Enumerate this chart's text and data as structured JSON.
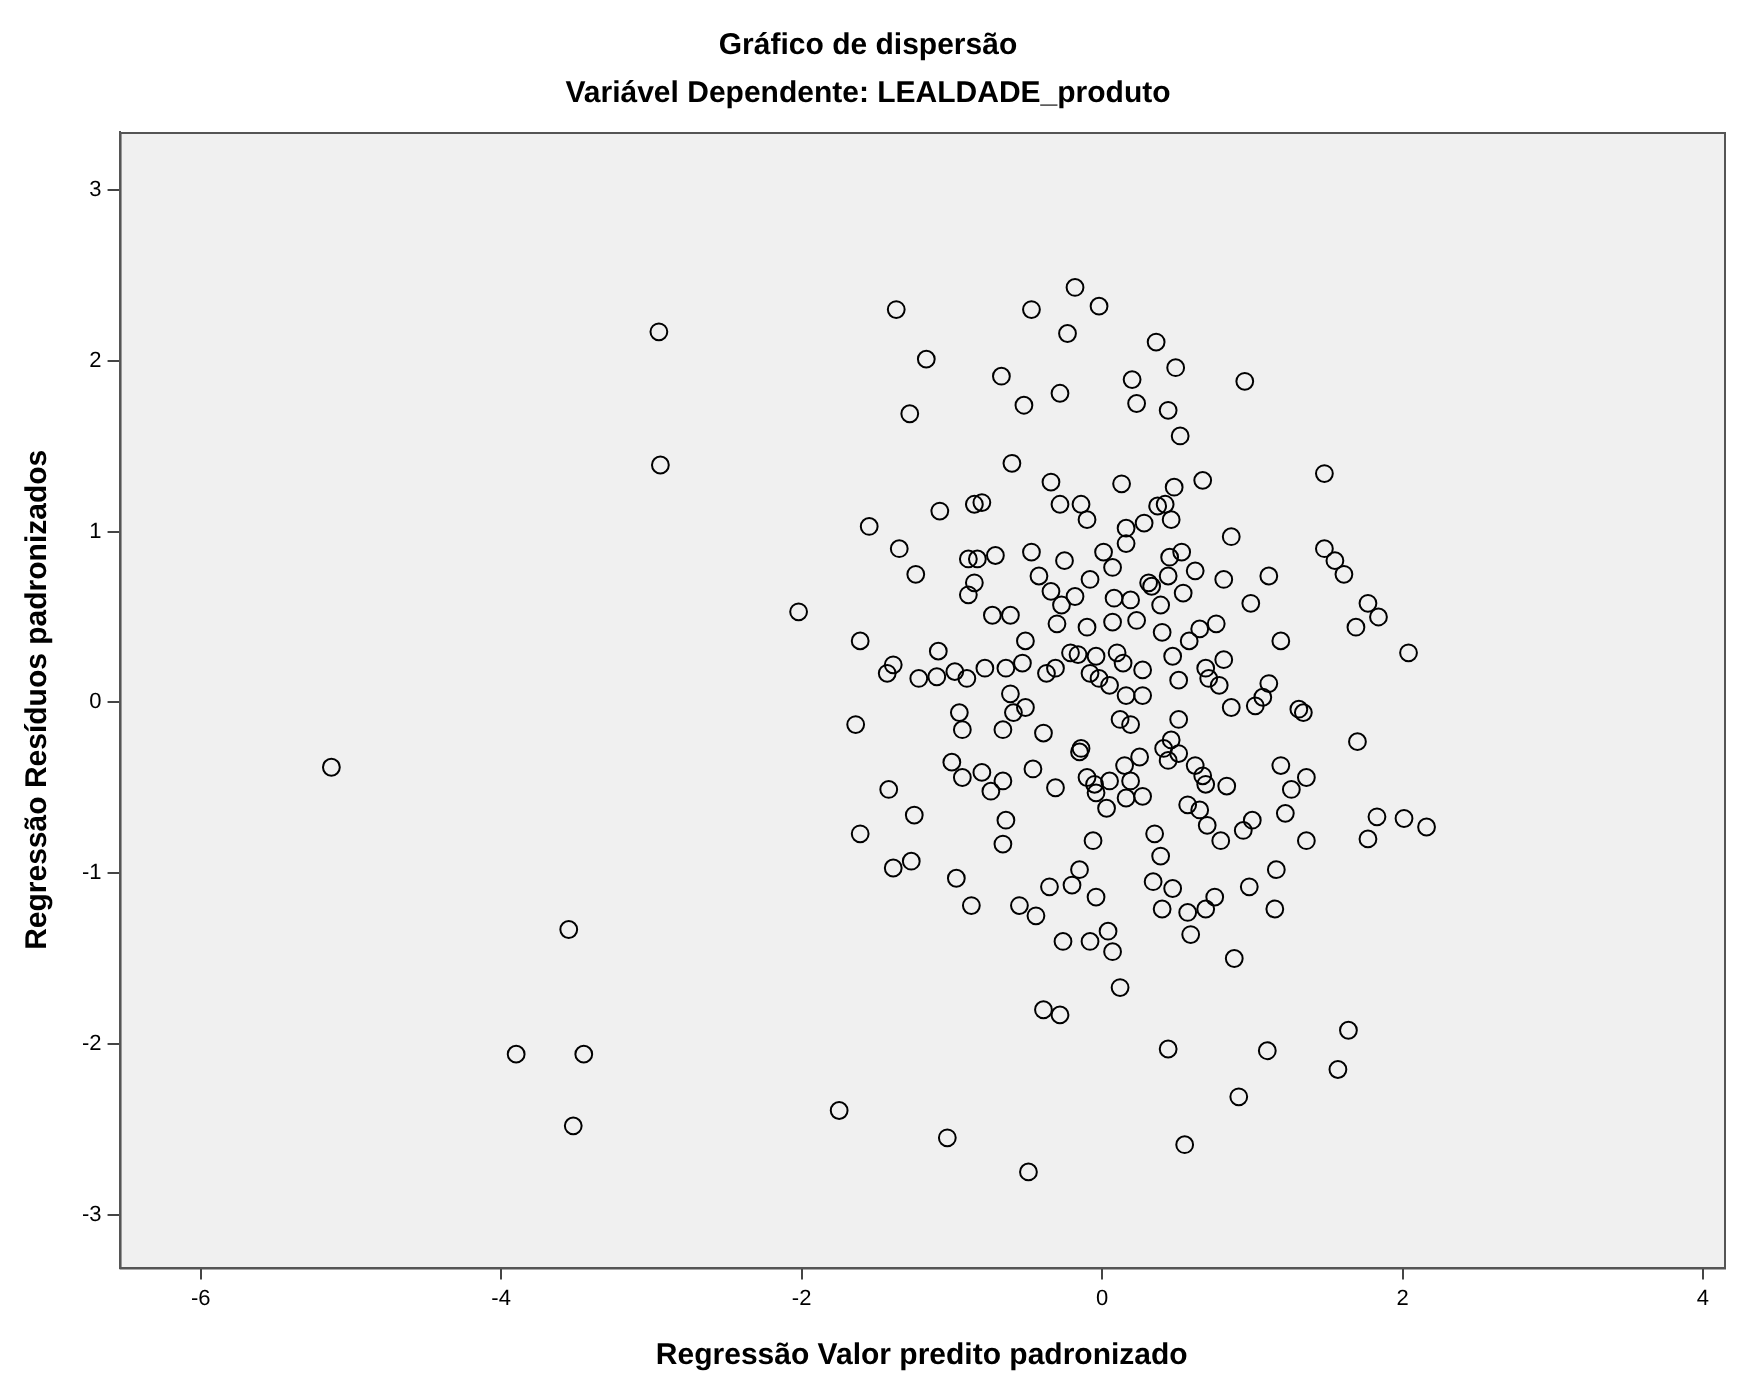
{
  "chart_data": {
    "type": "scatter",
    "title": "Gráfico de dispersão",
    "subtitle": "Variável Dependente: LEALDADE_produto",
    "xlabel": "Regressão Valor predito padronizado",
    "ylabel": "Regressão Resíduos padronizados",
    "xlim": [
      -6.54,
      4.14
    ],
    "ylim": [
      -3.31,
      3.34
    ],
    "xticks": [
      -6,
      -4,
      -2,
      0,
      2,
      4
    ],
    "yticks": [
      -3,
      -2,
      -1,
      0,
      1,
      2,
      3
    ],
    "grid": false,
    "legend": false,
    "marker": "circle",
    "color": "#000000",
    "x": [
      -5.13,
      -2.95,
      -2.94,
      -3.55,
      -3.9,
      -3.45,
      -3.52,
      -1.75,
      -1.03,
      -0.49,
      0.55,
      0.91,
      0.44,
      1.1,
      1.57,
      1.64,
      -0.39,
      -0.28,
      0.12,
      0.88,
      -0.26,
      -0.08,
      0.07,
      0.04,
      0.59,
      0.57,
      0.4,
      0.69,
      0.75,
      0.98,
      1.15,
      1.16,
      0.47,
      0.34,
      -0.04,
      -0.2,
      -0.15,
      -0.44,
      -0.55,
      -0.35,
      -0.87,
      -0.97,
      -1.27,
      -1.39,
      -1.61,
      -1.25,
      -1.42,
      -0.66,
      -0.64,
      -0.06,
      0.35,
      0.39,
      0.79,
      0.7,
      0.65,
      0.57,
      0.94,
      1.0,
      1.22,
      1.36,
      1.77,
      1.83,
      2.01,
      2.16,
      1.7,
      1.36,
      1.26,
      1.19,
      0.83,
      0.69,
      0.67,
      0.62,
      0.51,
      0.44,
      0.41,
      0.46,
      0.51,
      0.27,
      0.16,
      0.19,
      0.15,
      0.25,
      0.03,
      -0.04,
      -0.05,
      -0.1,
      0.05,
      -0.15,
      -0.31,
      -0.46,
      -0.66,
      -0.74,
      -0.8,
      -0.93,
      -1.0,
      -0.66,
      -0.93,
      -0.95,
      -1.64,
      -0.59,
      -0.51,
      -0.61,
      -0.39,
      -1.61,
      -1.39,
      -1.43,
      -1.22,
      -1.1,
      -0.98,
      -0.9,
      -0.78,
      -0.64,
      -0.53,
      -0.37,
      -0.31,
      -1.09,
      -0.51,
      -0.73,
      -0.61,
      -0.3,
      -0.27,
      -0.16,
      -0.21,
      -0.1,
      -0.04,
      -0.08,
      -0.02,
      0.05,
      0.1,
      0.14,
      0.07,
      0.16,
      0.19,
      0.12,
      0.27,
      0.27,
      0.23,
      0.08,
      0.19,
      0.33,
      0.4,
      0.47,
      0.51,
      0.58,
      0.65,
      0.69,
      0.71,
      0.78,
      0.81,
      0.86,
      0.76,
      1.02,
      1.07,
      1.11,
      1.19,
      0.99,
      1.11,
      0.81,
      0.86,
      0.62,
      0.54,
      0.53,
      0.45,
      0.44,
      0.39,
      0.31,
      0.01,
      0.07,
      -0.08,
      -0.18,
      -0.25,
      -0.34,
      -0.42,
      -0.47,
      -0.71,
      -0.83,
      -0.89,
      -0.89,
      -0.85,
      -1.24,
      -1.35,
      -1.55,
      -1.08,
      -0.85,
      -0.8,
      -0.6,
      -0.34,
      -0.28,
      -0.14,
      -0.1,
      0.13,
      0.16,
      0.16,
      0.28,
      0.37,
      0.42,
      0.46,
      0.48,
      0.67,
      1.48,
      1.48,
      1.55,
      1.61,
      1.77,
      1.84,
      1.69,
      2.04,
      1.34,
      1.31,
      0.52,
      0.44,
      0.49,
      0.36,
      0.23,
      0.2,
      0.95,
      -0.28,
      -0.52,
      -0.67,
      -0.23,
      -0.18,
      -0.02,
      -0.47,
      -1.37,
      -1.17,
      -1.28,
      -2.02,
      -0.14
    ],
    "values": [
      -0.38,
      2.17,
      1.39,
      -1.33,
      -2.06,
      -2.06,
      -2.48,
      -2.39,
      -2.55,
      -2.75,
      -2.59,
      -2.31,
      -2.03,
      -2.04,
      -2.15,
      -1.92,
      -1.8,
      -1.83,
      -1.67,
      -1.5,
      -1.4,
      -1.4,
      -1.46,
      -1.34,
      -1.36,
      -1.23,
      -1.21,
      -1.21,
      -1.14,
      -1.08,
      -1.21,
      -0.98,
      -1.09,
      -1.05,
      -1.14,
      -1.07,
      -0.98,
      -1.25,
      -1.19,
      -1.08,
      -1.19,
      -1.03,
      -0.93,
      -0.97,
      -0.77,
      -0.66,
      -0.51,
      -0.83,
      -0.69,
      -0.81,
      -0.77,
      -0.9,
      -0.81,
      -0.72,
      -0.63,
      -0.6,
      -0.75,
      -0.69,
      -0.65,
      -0.81,
      -0.8,
      -0.67,
      -0.68,
      -0.73,
      -0.23,
      -0.44,
      -0.51,
      -0.37,
      -0.49,
      -0.48,
      -0.43,
      -0.37,
      -0.3,
      -0.34,
      -0.27,
      -0.22,
      -0.1,
      -0.55,
      -0.56,
      -0.46,
      -0.37,
      -0.32,
      -0.62,
      -0.53,
      -0.48,
      -0.44,
      -0.46,
      -0.29,
      -0.5,
      -0.39,
      -0.46,
      -0.52,
      -0.41,
      -0.44,
      -0.35,
      -0.16,
      -0.16,
      -0.06,
      -0.13,
      -0.06,
      -0.03,
      0.05,
      -0.18,
      0.36,
      0.22,
      0.17,
      0.14,
      0.15,
      0.18,
      0.14,
      0.2,
      0.2,
      0.23,
      0.17,
      0.2,
      0.3,
      0.36,
      0.51,
      0.51,
      0.46,
      0.57,
      0.28,
      0.29,
      0.44,
      0.27,
      0.17,
      0.14,
      0.1,
      0.29,
      0.23,
      0.47,
      0.04,
      -0.13,
      -0.1,
      0.04,
      0.19,
      0.48,
      0.61,
      0.6,
      0.68,
      0.41,
      0.27,
      0.13,
      0.36,
      0.43,
      0.2,
      0.14,
      0.1,
      0.25,
      -0.03,
      0.46,
      -0.02,
      0.03,
      0.11,
      0.36,
      0.58,
      0.74,
      0.72,
      0.97,
      0.77,
      0.64,
      0.88,
      0.85,
      0.74,
      0.57,
      0.7,
      0.88,
      0.79,
      0.72,
      0.62,
      0.83,
      0.65,
      0.74,
      0.88,
      0.86,
      0.84,
      0.84,
      0.63,
      0.7,
      0.75,
      0.9,
      1.03,
      1.12,
      1.16,
      1.17,
      1.4,
      1.29,
      1.16,
      1.16,
      1.07,
      1.28,
      1.02,
      0.93,
      1.05,
      1.15,
      1.16,
      1.07,
      1.26,
      1.3,
      1.34,
      0.9,
      0.83,
      0.75,
      0.58,
      0.5,
      0.44,
      0.29,
      -0.06,
      -0.04,
      1.56,
      1.71,
      1.96,
      2.11,
      1.75,
      1.89,
      1.88,
      1.81,
      1.74,
      1.91,
      2.16,
      2.43,
      2.32,
      2.3,
      2.3,
      2.01,
      1.69,
      0.53,
      -0.27
    ]
  }
}
